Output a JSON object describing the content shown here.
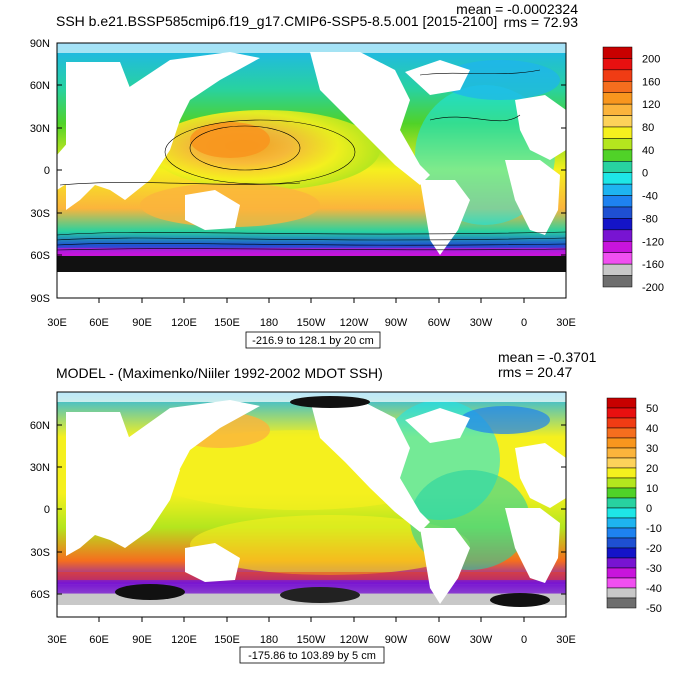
{
  "panels": [
    {
      "title": "SSH b.e21.BSSP585cmip6.f19_g17.CMIP6-SSP5-8.5.001 [2015-2100]",
      "mean_label": "mean = -0.0002324",
      "rms_label": "rms = 72.93",
      "range_label": "-216.9 to 128.1 by 20 cm",
      "lat_labels": [
        "90N",
        "60N",
        "30N",
        "0",
        "30S",
        "60S",
        "90S"
      ],
      "lon_labels": [
        "30E",
        "60E",
        "90E",
        "120E",
        "150E",
        "180",
        "150W",
        "120W",
        "90W",
        "60W",
        "30W",
        "0",
        "30E"
      ],
      "colorbar": {
        "labels": [
          "200",
          "160",
          "120",
          "80",
          "40",
          "0",
          "-40",
          "-80",
          "-120",
          "-160",
          "-200"
        ],
        "colors": [
          "#c80000",
          "#e81010",
          "#f03c14",
          "#f56e1e",
          "#f8961e",
          "#fbb43c",
          "#fdd25a",
          "#f5f01e",
          "#b4e61e",
          "#50d228",
          "#28d2a0",
          "#1ee6e6",
          "#1eb4f0",
          "#1e82f0",
          "#1e50d2",
          "#1414c8",
          "#7814d2",
          "#c814dc",
          "#f050f0",
          "#c8c8c8",
          "#6e6e6e"
        ]
      }
    },
    {
      "title": "MODEL - (Maximenko/Niiler 1992-2002 MDOT SSH)",
      "mean_label": "mean = -0.3701",
      "rms_label": "rms = 20.47",
      "range_label": "-175.86 to 103.89 by 5 cm",
      "lat_labels": [
        "60N",
        "30N",
        "0",
        "30S",
        "60S"
      ],
      "lon_labels": [
        "30E",
        "60E",
        "90E",
        "120E",
        "150E",
        "180",
        "150W",
        "120W",
        "90W",
        "60W",
        "30W",
        "0",
        "30E"
      ],
      "colorbar": {
        "labels": [
          "50",
          "40",
          "30",
          "20",
          "10",
          "0",
          "-10",
          "-20",
          "-30",
          "-40",
          "-50"
        ],
        "colors": [
          "#c80000",
          "#e81010",
          "#f03c14",
          "#f56e1e",
          "#f8961e",
          "#fbb43c",
          "#fdd25a",
          "#f5f01e",
          "#b4e61e",
          "#50d228",
          "#28d2a0",
          "#1ee6e6",
          "#1eb4f0",
          "#1e82f0",
          "#1e50d2",
          "#1414c8",
          "#7814d2",
          "#c814dc",
          "#f050f0",
          "#c8c8c8",
          "#6e6e6e"
        ]
      }
    }
  ]
}
